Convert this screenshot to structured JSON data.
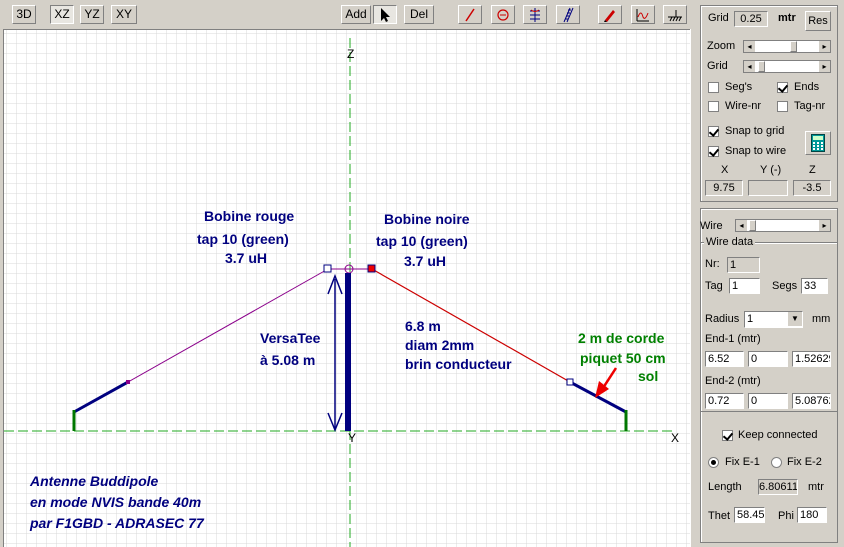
{
  "toolbar": {
    "view_3d": "3D",
    "view_xz": "XZ",
    "view_yz": "YZ",
    "view_xy": "XY",
    "add": "Add",
    "del": "Del"
  },
  "canvas": {
    "axis_z": "Z",
    "axis_x": "X",
    "axis_y": "Y",
    "annotations": {
      "bobine_rouge": [
        "Bobine rouge",
        "tap 10 (green)",
        "3.7 uH"
      ],
      "bobine_noire": [
        "Bobine noire",
        "tap 10 (green)",
        "3.7 uH"
      ],
      "versatee": [
        "VersaTee",
        "à 5.08 m"
      ],
      "wire_info": [
        "6.8 m",
        "diam 2mm",
        "brin conducteur"
      ],
      "corde": [
        "2 m de corde",
        "piquet 50 cm",
        "sol"
      ],
      "title": [
        "Antenne Buddipole",
        "en mode NVIS bande 40m",
        "par F1GBD - ADRASEC 77"
      ]
    },
    "colors": {
      "grid": "#c8c8c8",
      "axis": "#22aa22",
      "wire_red": "#cc0000",
      "wire_purple": "#8b008b",
      "wire_blue": "#00007f",
      "ground": "#007700",
      "text_blue": "#00007f",
      "text_green": "#008000"
    }
  },
  "panel": {
    "grid_label": "Grid",
    "grid_value": "0.25",
    "grid_unit": "mtr",
    "res_button": "Res",
    "zoom_label": "Zoom",
    "grid_slider_label": "Grid",
    "segs_label": "Seg's",
    "ends_label": "Ends",
    "wirenr_label": "Wire-nr",
    "tagnr_label": "Tag-nr",
    "snap_grid_label": "Snap to grid",
    "snap_wire_label": "Snap to wire",
    "x_label": "X",
    "y_label": "Y (-)",
    "z_label": "Z",
    "x_value": "9.75",
    "y_value": "",
    "z_value": "-3.5",
    "wire_label": "Wire",
    "wire_data_label": "Wire data",
    "nr_label": "Nr:",
    "nr_value": "1",
    "tag_label": "Tag",
    "tag_value": "1",
    "segs2_label": "Segs",
    "segs_value": "33",
    "radius_label": "Radius",
    "radius_value": "1",
    "radius_unit": "mm",
    "end1_label": "End-1 (mtr)",
    "end1": [
      "6.52",
      "0",
      "1.52629"
    ],
    "end2_label": "End-2 (mtr)",
    "end2": [
      "0.72",
      "0",
      "5.08762"
    ],
    "keep_connected_label": "Keep connected",
    "fix_e1_label": "Fix E-1",
    "fix_e2_label": "Fix E-2",
    "length_label": "Length",
    "length_value": "6.80611",
    "length_unit": "mtr",
    "theta_label": "Thet",
    "theta_value": "58.45",
    "phi_label": "Phi",
    "phi_value": "180"
  }
}
